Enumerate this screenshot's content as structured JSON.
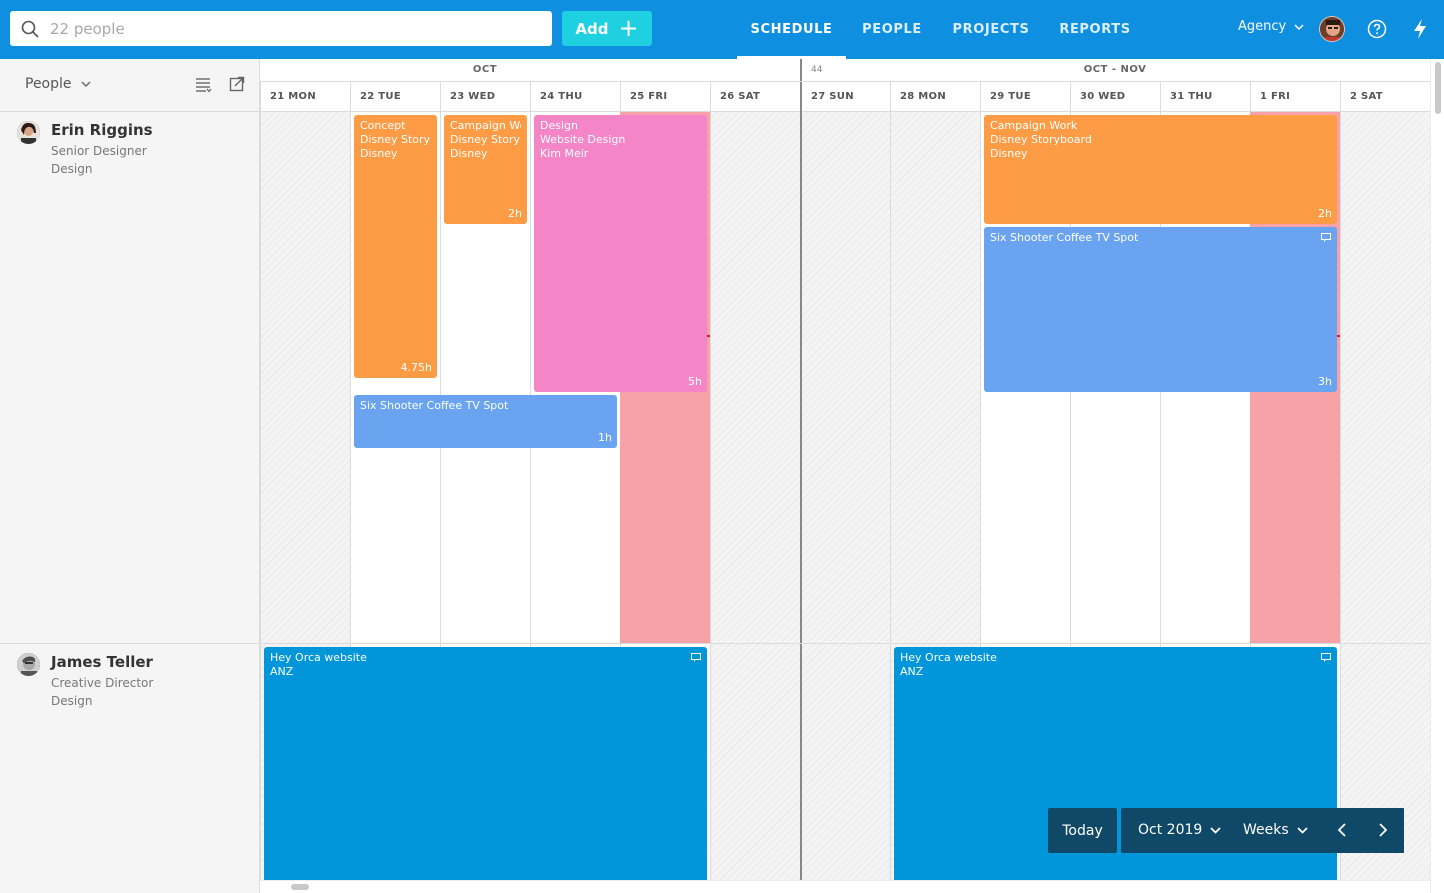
{
  "search": {
    "placeholder": "22 people",
    "value": ""
  },
  "add_button": {
    "label": "Add"
  },
  "nav": {
    "tabs": [
      "SCHEDULE",
      "PEOPLE",
      "PROJECTS",
      "REPORTS"
    ],
    "active": "SCHEDULE"
  },
  "account": {
    "label": "Agency"
  },
  "left_panel": {
    "title": "People"
  },
  "months": [
    "OCT",
    "OCT - NOV"
  ],
  "week_number": "44",
  "days": [
    "21 MON",
    "22 TUE",
    "23 WED",
    "24 THU",
    "25 FRI",
    "26 SAT",
    "27 SUN",
    "28 MON",
    "29 TUE",
    "30 WED",
    "31 THU",
    "1 FRI",
    "2 SAT"
  ],
  "people": [
    {
      "name": "Erin Riggins",
      "role": "Senior Designer",
      "department": "Design"
    },
    {
      "name": "James Teller",
      "role": "Creative Director",
      "department": "Design"
    }
  ],
  "tasks": [
    {
      "lines": [
        "Concept",
        "Disney Storyboard",
        "Disney"
      ],
      "hours": "4.75h",
      "color": "#fe9b45"
    },
    {
      "lines": [
        "Campaign Work",
        "Disney Storyboard",
        "Disney"
      ],
      "hours": "2h",
      "color": "#fe9b45"
    },
    {
      "lines": [
        "Design",
        "Website Design",
        "Kim Meir"
      ],
      "hours": "5h",
      "color": "#f485c6"
    },
    {
      "lines": [
        "Six Shooter Coffee TV Spot"
      ],
      "hours": "1h",
      "color": "#6aa3ef"
    },
    {
      "lines": [
        "Campaign Work",
        "Disney Storyboard",
        "Disney"
      ],
      "hours": "2h",
      "color": "#fe9b45"
    },
    {
      "lines": [
        "Six Shooter Coffee TV Spot"
      ],
      "hours": "3h",
      "color": "#6aa3ef"
    },
    {
      "lines": [
        "Hey Orca website",
        "ANZ"
      ],
      "hours": "",
      "color": "#0096d9"
    },
    {
      "lines": [
        "Hey Orca website",
        "ANZ"
      ],
      "hours": "",
      "color": "#0096d9"
    }
  ],
  "controls": {
    "today": "Today",
    "period": "Oct 2019",
    "view": "Weeks"
  },
  "colors": {
    "topbar": "#0f8fdf",
    "add_button": "#1ed0e0",
    "time_off": "#f6a2a6",
    "controls": "#104868"
  }
}
